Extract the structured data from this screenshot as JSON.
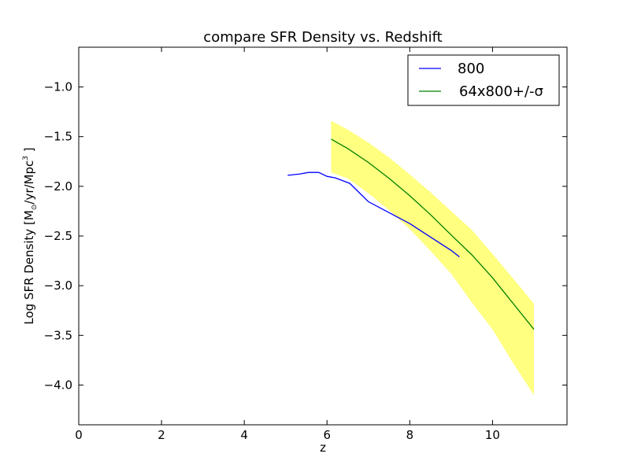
{
  "chart_data": {
    "type": "line",
    "title": "compare SFR Density vs. Redshift",
    "xlabel": "z",
    "ylabel": {
      "prefix": "Log SFR Density [M",
      "sub": "⊙",
      "mid": "/yr/Mpc",
      "sup": "3",
      "suffix": " ]"
    },
    "xlim": [
      0,
      11.8
    ],
    "ylim": [
      -4.4,
      -0.6
    ],
    "xticks": [
      0,
      2,
      4,
      6,
      8,
      10
    ],
    "yticks": [
      -1.0,
      -1.5,
      -2.0,
      -2.5,
      -3.0,
      -3.5,
      -4.0
    ],
    "xtick_labels": [
      "0",
      "2",
      "4",
      "6",
      "8",
      "10"
    ],
    "ytick_labels": [
      "−1.0",
      "−1.5",
      "−2.0",
      "−2.5",
      "−3.0",
      "−3.5",
      "−4.0"
    ],
    "grid": false,
    "legend_position": "top-right",
    "series": [
      {
        "name": "800",
        "color": "#0000ff",
        "x": [
          5.05,
          5.35,
          5.55,
          5.8,
          6.0,
          6.2,
          6.55,
          7.0,
          7.5,
          8.0,
          8.5,
          9.0,
          9.2
        ],
        "y": [
          -1.89,
          -1.875,
          -1.86,
          -1.86,
          -1.9,
          -1.915,
          -1.97,
          -2.155,
          -2.265,
          -2.375,
          -2.51,
          -2.645,
          -2.71
        ]
      },
      {
        "name": "64x800+/-σ",
        "color": "#008000",
        "x": [
          6.1,
          6.5,
          7.0,
          7.5,
          8.0,
          8.5,
          9.0,
          9.5,
          10.0,
          10.5,
          11.0
        ],
        "y": [
          -1.525,
          -1.62,
          -1.76,
          -1.92,
          -2.095,
          -2.285,
          -2.49,
          -2.69,
          -2.92,
          -3.18,
          -3.44
        ]
      }
    ],
    "band": {
      "color": "#ffff80",
      "x": [
        6.1,
        6.5,
        7.0,
        7.5,
        8.0,
        8.5,
        9.0,
        9.5,
        10.0,
        10.5,
        11.0
      ],
      "upper": [
        -1.34,
        -1.43,
        -1.56,
        -1.71,
        -1.88,
        -2.06,
        -2.25,
        -2.44,
        -2.68,
        -2.93,
        -3.18
      ],
      "lower": [
        -1.86,
        -1.92,
        -2.07,
        -2.24,
        -2.43,
        -2.65,
        -2.88,
        -3.17,
        -3.44,
        -3.78,
        -4.1
      ]
    }
  }
}
